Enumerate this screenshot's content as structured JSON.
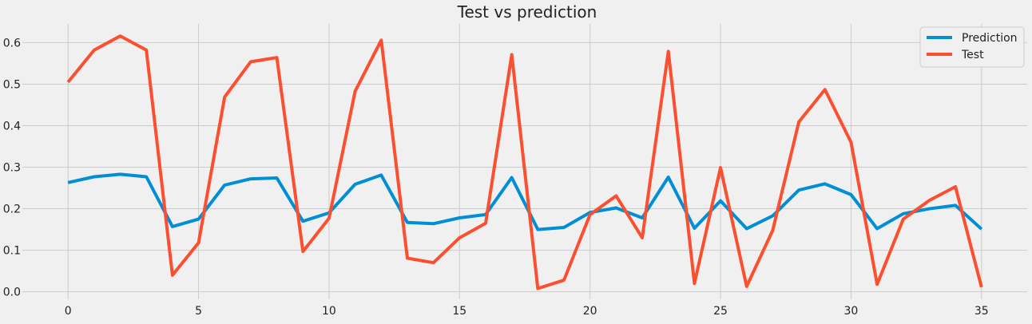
{
  "colors": {
    "background": "#f0f0f0",
    "grid": "#cbcbcb",
    "text": "#222222",
    "prediction": "#008fd5",
    "test": "#fc4f30"
  },
  "chart_data": {
    "type": "line",
    "title": "Test  vs prediction",
    "xlabel": "",
    "ylabel": "",
    "grid": true,
    "legend_position": "top-right",
    "xlim": [
      -1.75,
      36.75
    ],
    "ylim": [
      -0.018,
      0.645
    ],
    "x_ticks": [
      0,
      5,
      10,
      15,
      20,
      25,
      30,
      35
    ],
    "y_ticks": [
      0.0,
      0.1,
      0.2,
      0.3,
      0.4,
      0.5,
      0.6
    ],
    "x": [
      0,
      1,
      2,
      3,
      4,
      5,
      6,
      7,
      8,
      9,
      10,
      11,
      12,
      13,
      14,
      15,
      16,
      17,
      18,
      19,
      20,
      21,
      22,
      23,
      24,
      25,
      26,
      27,
      28,
      29,
      30,
      31,
      32,
      33,
      34,
      35
    ],
    "series": [
      {
        "name": "Prediction",
        "color": "#008fd5",
        "values": [
          0.263,
          0.277,
          0.283,
          0.277,
          0.157,
          0.175,
          0.257,
          0.272,
          0.274,
          0.17,
          0.19,
          0.259,
          0.281,
          0.167,
          0.164,
          0.178,
          0.186,
          0.275,
          0.15,
          0.155,
          0.191,
          0.202,
          0.178,
          0.276,
          0.153,
          0.219,
          0.152,
          0.183,
          0.245,
          0.26,
          0.234,
          0.152,
          0.188,
          0.2,
          0.208,
          0.151
        ]
      },
      {
        "name": "Test",
        "color": "#fc4f30",
        "values": [
          0.505,
          0.582,
          0.616,
          0.582,
          0.04,
          0.118,
          0.469,
          0.554,
          0.564,
          0.097,
          0.177,
          0.483,
          0.606,
          0.081,
          0.07,
          0.13,
          0.165,
          0.571,
          0.008,
          0.028,
          0.186,
          0.231,
          0.13,
          0.579,
          0.02,
          0.299,
          0.013,
          0.148,
          0.409,
          0.487,
          0.36,
          0.018,
          0.175,
          0.22,
          0.253,
          0.011
        ]
      }
    ]
  }
}
